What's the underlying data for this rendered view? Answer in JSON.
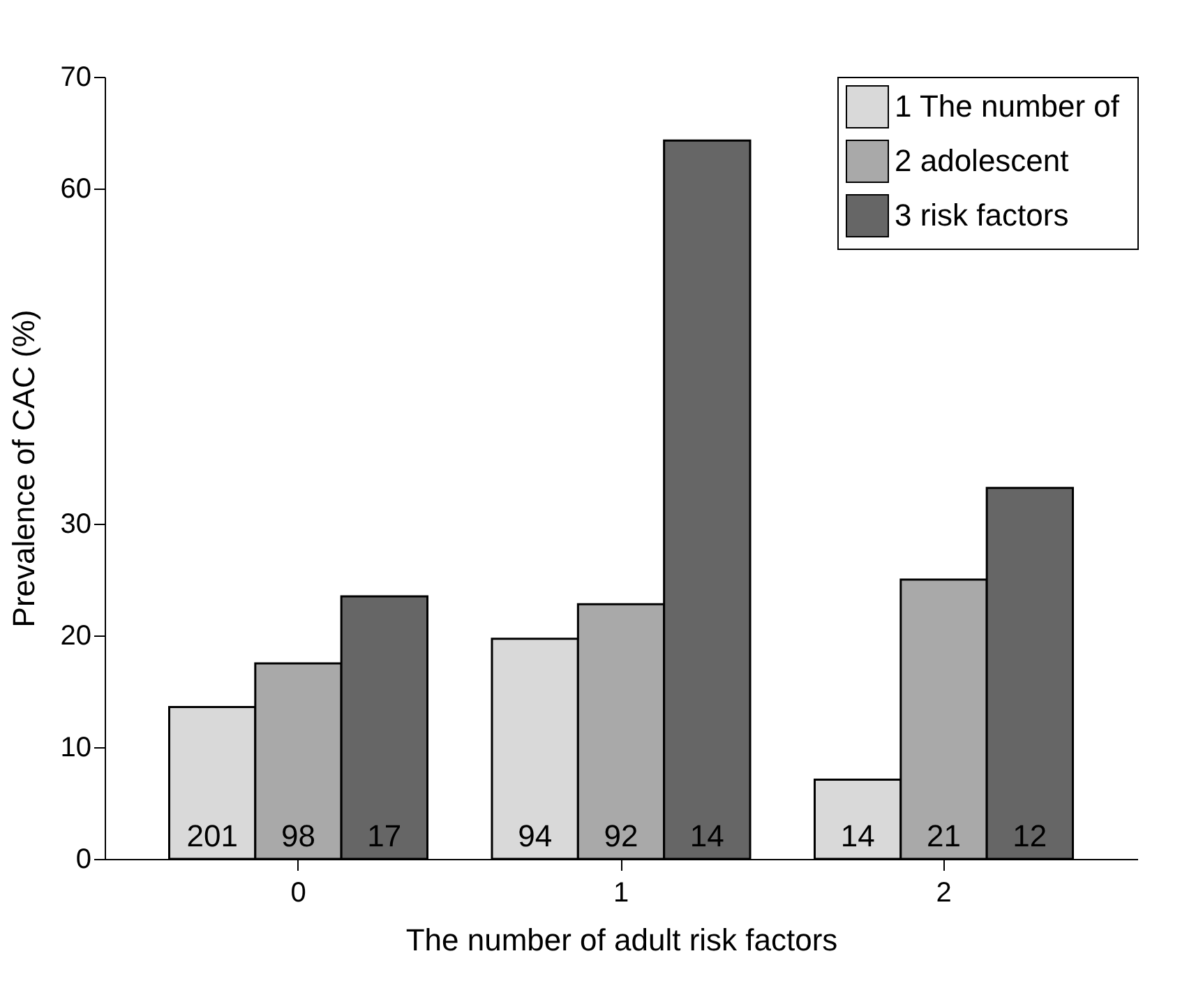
{
  "chart_data": {
    "type": "bar",
    "xlabel": "The number of adult risk factors",
    "ylabel": "Prevalence of CAC (%)",
    "categories": [
      "0",
      "1",
      "2"
    ],
    "series": [
      {
        "name": "1  The number of",
        "color": "#d9d9d9",
        "values": [
          13.6,
          19.7,
          7.1
        ]
      },
      {
        "name": "2     adolescent",
        "color": "#a9a9a9",
        "values": [
          17.5,
          22.8,
          25.0
        ]
      },
      {
        "name": "3    risk factors",
        "color": "#666666",
        "values": [
          23.5,
          64.3,
          33.2
        ]
      }
    ],
    "annotations": [
      {
        "text": "201",
        "x": "0",
        "y": 0
      },
      {
        "text": "98",
        "x": "0",
        "y": 0
      },
      {
        "text": "17",
        "x": "0",
        "y": 0
      },
      {
        "text": "94",
        "x": "1",
        "y": 0
      },
      {
        "text": "92",
        "x": "1",
        "y": 0
      },
      {
        "text": "14",
        "x": "1",
        "y": 0
      },
      {
        "text": "14",
        "x": "2",
        "y": 0
      },
      {
        "text": "21",
        "x": "2",
        "y": 0
      },
      {
        "text": "12",
        "x": "2",
        "y": 0
      }
    ],
    "ylim": [
      0,
      70
    ],
    "yticks": [
      0,
      10,
      20,
      30,
      60,
      70
    ],
    "legend": "top right"
  }
}
